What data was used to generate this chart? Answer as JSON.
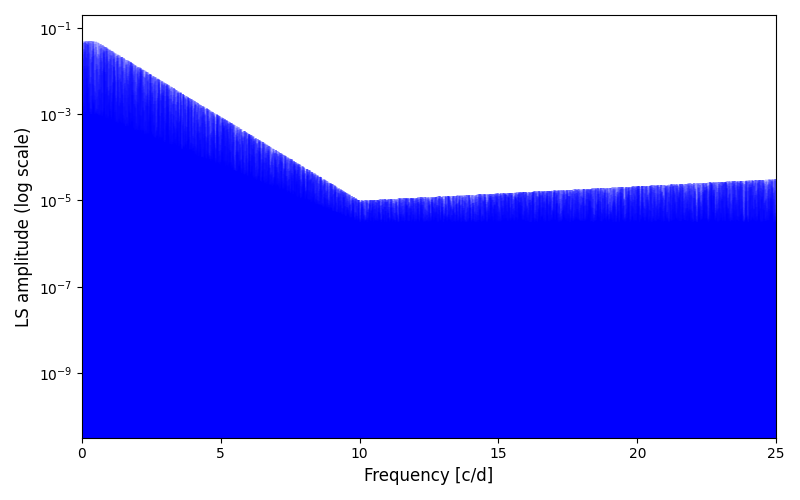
{
  "xlabel": "Frequency [c/d]",
  "ylabel": "LS amplitude (log scale)",
  "line_color": "#0000ff",
  "xlim": [
    0,
    25
  ],
  "figsize": [
    8.0,
    5.0
  ],
  "dpi": 100,
  "seed": 42,
  "n_points": 15000,
  "freq_max": 25.0,
  "background_color": "#ffffff"
}
